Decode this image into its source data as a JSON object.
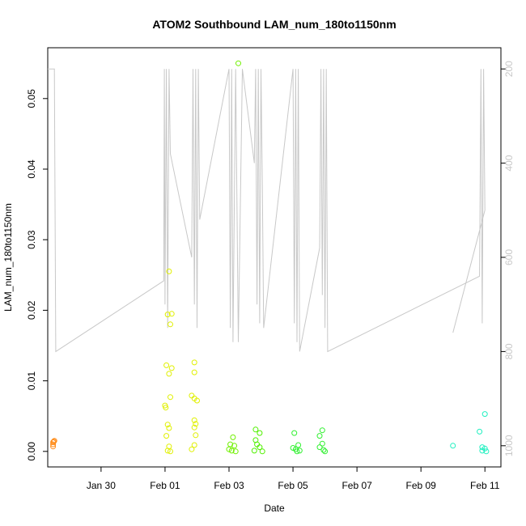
{
  "chart_data": {
    "type": "scatter",
    "title": "ATOM2 Southbound LAM_num_180to1150nm",
    "xlabel": "Date",
    "ylabel": "LAM_num_180to1150nm",
    "x_ticks": [
      "Jan 30",
      "Feb 01",
      "Feb 03",
      "Feb 05",
      "Feb 07",
      "Feb 09",
      "Feb 11"
    ],
    "y_ticks": [
      "0.00",
      "0.01",
      "0.02",
      "0.03",
      "0.04",
      "0.05"
    ],
    "y_tick_values": [
      0,
      0.01,
      0.02,
      0.03,
      0.04,
      0.05
    ],
    "right_ticks": [
      "200",
      "400",
      "600",
      "800",
      "1000"
    ],
    "right_tick_values": [
      200,
      400,
      600,
      800,
      1000
    ],
    "xlim": [
      "2018-01-28T08:00",
      "2018-02-11T12:00"
    ],
    "ylim": [
      -0.0022,
      0.0572
    ],
    "right_ylim": [
      1045,
      155
    ],
    "right_axis_reversed": true,
    "points": [
      {
        "x": "2018-01-28T12:00",
        "y": 0.0007,
        "color": "#ff8c1a"
      },
      {
        "x": "2018-01-28T12:00",
        "y": 0.001,
        "color": "#ff8c1a"
      },
      {
        "x": "2018-01-28T12:00",
        "y": 0.0013,
        "color": "#ff8c1a"
      },
      {
        "x": "2018-01-28T12:30",
        "y": 0.0014,
        "color": "#ff8c1a"
      },
      {
        "x": "2018-01-28T13:00",
        "y": 0.0015,
        "color": "#ff8c1a"
      },
      {
        "x": "2018-02-01T02:00",
        "y": 0.0194,
        "color": "#e0f000"
      },
      {
        "x": "2018-02-01T03:00",
        "y": 0.0255,
        "color": "#e0f000"
      },
      {
        "x": "2018-02-01T04:00",
        "y": 0.018,
        "color": "#e0f000"
      },
      {
        "x": "2018-02-01T05:00",
        "y": 0.0195,
        "color": "#e0f000"
      },
      {
        "x": "2018-02-01T01:00",
        "y": 0.0122,
        "color": "#e0f000"
      },
      {
        "x": "2018-02-01T03:00",
        "y": 0.011,
        "color": "#e0f000"
      },
      {
        "x": "2018-02-01T05:00",
        "y": 0.0118,
        "color": "#e0f000"
      },
      {
        "x": "2018-02-01T04:00",
        "y": 0.0077,
        "color": "#e0f000"
      },
      {
        "x": "2018-02-01T00:00",
        "y": 0.0065,
        "color": "#e0f000"
      },
      {
        "x": "2018-02-01T00:30",
        "y": 0.0062,
        "color": "#e0f000"
      },
      {
        "x": "2018-02-01T02:00",
        "y": 0.0038,
        "color": "#e0f000"
      },
      {
        "x": "2018-02-01T03:00",
        "y": 0.0033,
        "color": "#e0f000"
      },
      {
        "x": "2018-02-01T01:00",
        "y": 0.0022,
        "color": "#e0f000"
      },
      {
        "x": "2018-02-01T03:00",
        "y": 0.0007,
        "color": "#e0f000"
      },
      {
        "x": "2018-02-01T02:00",
        "y": 0.0001,
        "color": "#e0f000"
      },
      {
        "x": "2018-02-01T04:00",
        "y": 0.0,
        "color": "#e0f000"
      },
      {
        "x": "2018-02-01T22:00",
        "y": 0.0126,
        "color": "#e0f000"
      },
      {
        "x": "2018-02-01T22:00",
        "y": 0.0112,
        "color": "#e0f000"
      },
      {
        "x": "2018-02-01T20:00",
        "y": 0.0079,
        "color": "#e0f000"
      },
      {
        "x": "2018-02-01T22:00",
        "y": 0.0075,
        "color": "#e0f000"
      },
      {
        "x": "2018-02-02T00:00",
        "y": 0.0072,
        "color": "#e0f000"
      },
      {
        "x": "2018-02-01T22:00",
        "y": 0.0044,
        "color": "#e0f000"
      },
      {
        "x": "2018-02-01T23:00",
        "y": 0.0039,
        "color": "#e0f000"
      },
      {
        "x": "2018-02-01T22:00",
        "y": 0.0034,
        "color": "#e0f000"
      },
      {
        "x": "2018-02-01T23:00",
        "y": 0.0023,
        "color": "#e0f000"
      },
      {
        "x": "2018-02-01T20:00",
        "y": 0.0003,
        "color": "#e0f000"
      },
      {
        "x": "2018-02-01T22:00",
        "y": 0.0009,
        "color": "#e0f000"
      },
      {
        "x": "2018-02-03T03:00",
        "y": 0.002,
        "color": "#70f000"
      },
      {
        "x": "2018-02-03T01:00",
        "y": 0.001,
        "color": "#70f000"
      },
      {
        "x": "2018-02-03T04:00",
        "y": 0.0008,
        "color": "#70f000"
      },
      {
        "x": "2018-02-03T00:00",
        "y": 0.0003,
        "color": "#70f000"
      },
      {
        "x": "2018-02-03T02:00",
        "y": 0.0001,
        "color": "#70f000"
      },
      {
        "x": "2018-02-03T05:00",
        "y": 0.0,
        "color": "#70f000"
      },
      {
        "x": "2018-02-03T07:00",
        "y": 0.055,
        "color": "#70f000"
      },
      {
        "x": "2018-02-03T20:00",
        "y": 0.0031,
        "color": "#50f000"
      },
      {
        "x": "2018-02-03T23:00",
        "y": 0.0026,
        "color": "#50f000"
      },
      {
        "x": "2018-02-03T20:00",
        "y": 0.0016,
        "color": "#50f000"
      },
      {
        "x": "2018-02-03T21:00",
        "y": 0.001,
        "color": "#50f000"
      },
      {
        "x": "2018-02-03T23:00",
        "y": 0.0006,
        "color": "#50f000"
      },
      {
        "x": "2018-02-03T19:00",
        "y": 0.0001,
        "color": "#50f000"
      },
      {
        "x": "2018-02-04T01:00",
        "y": 0.0,
        "color": "#50f000"
      },
      {
        "x": "2018-02-05T01:00",
        "y": 0.0026,
        "color": "#30f030"
      },
      {
        "x": "2018-02-05T04:00",
        "y": 0.0009,
        "color": "#30f030"
      },
      {
        "x": "2018-02-05T00:00",
        "y": 0.0005,
        "color": "#30f030"
      },
      {
        "x": "2018-02-05T02:00",
        "y": 0.0003,
        "color": "#30f030"
      },
      {
        "x": "2018-02-05T05:00",
        "y": 0.0001,
        "color": "#30f030"
      },
      {
        "x": "2018-02-05T03:00",
        "y": 0.0,
        "color": "#30f030"
      },
      {
        "x": "2018-02-05T22:00",
        "y": 0.003,
        "color": "#30f030"
      },
      {
        "x": "2018-02-05T20:00",
        "y": 0.0022,
        "color": "#30f030"
      },
      {
        "x": "2018-02-05T22:00",
        "y": 0.0011,
        "color": "#30f030"
      },
      {
        "x": "2018-02-05T20:00",
        "y": 0.0006,
        "color": "#30f030"
      },
      {
        "x": "2018-02-05T23:00",
        "y": 0.0002,
        "color": "#30f030"
      },
      {
        "x": "2018-02-06T00:00",
        "y": 0.0,
        "color": "#30f030"
      },
      {
        "x": "2018-02-10T00:00",
        "y": 0.0008,
        "color": "#20f0c0"
      },
      {
        "x": "2018-02-10T20:00",
        "y": 0.0028,
        "color": "#20f0c0"
      },
      {
        "x": "2018-02-11T00:00",
        "y": 0.0053,
        "color": "#20f0c0"
      },
      {
        "x": "2018-02-10T22:00",
        "y": 0.0006,
        "color": "#20f0c0"
      },
      {
        "x": "2018-02-11T00:00",
        "y": 0.0004,
        "color": "#20f0c0"
      },
      {
        "x": "2018-02-10T22:00",
        "y": 0.0001,
        "color": "#20f0c0"
      },
      {
        "x": "2018-02-11T01:00",
        "y": 0.0,
        "color": "#20f0c0"
      }
    ],
    "secondary_line": {
      "color": "#c8c8c8",
      "points": [
        [
          "2018-01-28T08:00",
          200
        ],
        [
          "2018-01-28T13:00",
          200
        ],
        [
          "2018-01-28T14:00",
          800
        ],
        [
          "2018-01-31T23:00",
          650
        ],
        [
          "2018-01-31T23:30",
          200
        ],
        [
          "2018-02-01T00:00",
          700
        ],
        [
          "2018-02-01T01:00",
          200
        ],
        [
          "2018-02-01T02:00",
          750
        ],
        [
          "2018-02-01T03:00",
          200
        ],
        [
          "2018-02-01T04:00",
          380
        ],
        [
          "2018-02-01T20:00",
          600
        ],
        [
          "2018-02-01T21:00",
          200
        ],
        [
          "2018-02-01T22:00",
          700
        ],
        [
          "2018-02-01T23:00",
          200
        ],
        [
          "2018-02-02T00:00",
          750
        ],
        [
          "2018-02-02T01:00",
          200
        ],
        [
          "2018-02-02T02:00",
          520
        ],
        [
          "2018-02-03T00:00",
          200
        ],
        [
          "2018-02-03T01:00",
          750
        ],
        [
          "2018-02-03T02:00",
          200
        ],
        [
          "2018-02-03T03:00",
          780
        ],
        [
          "2018-02-03T05:00",
          200
        ],
        [
          "2018-02-03T07:00",
          780
        ],
        [
          "2018-02-03T10:00",
          200
        ],
        [
          "2018-02-03T19:00",
          400
        ],
        [
          "2018-02-03T20:00",
          200
        ],
        [
          "2018-02-03T21:00",
          700
        ],
        [
          "2018-02-03T22:00",
          200
        ],
        [
          "2018-02-03T23:00",
          740
        ],
        [
          "2018-02-04T00:00",
          200
        ],
        [
          "2018-02-04T01:00",
          450
        ],
        [
          "2018-02-04T02:00",
          750
        ],
        [
          "2018-02-05T00:00",
          200
        ],
        [
          "2018-02-05T01:00",
          740
        ],
        [
          "2018-02-05T02:00",
          200
        ],
        [
          "2018-02-05T03:00",
          780
        ],
        [
          "2018-02-05T04:00",
          200
        ],
        [
          "2018-02-05T05:00",
          800
        ],
        [
          "2018-02-05T20:00",
          580
        ],
        [
          "2018-02-05T21:00",
          200
        ],
        [
          "2018-02-05T22:00",
          680
        ],
        [
          "2018-02-05T23:00",
          200
        ],
        [
          "2018-02-06T00:00",
          750
        ],
        [
          "2018-02-06T01:00",
          200
        ],
        [
          "2018-02-06T02:00",
          800
        ],
        [
          "2018-02-10T20:00",
          640
        ],
        [
          "2018-02-10T21:00",
          200
        ],
        [
          "2018-02-10T22:00",
          740
        ],
        [
          "2018-02-10T23:00",
          200
        ],
        [
          "2018-02-11T00:00",
          500
        ],
        [
          "2018-02-10T00:00",
          760
        ]
      ]
    }
  }
}
